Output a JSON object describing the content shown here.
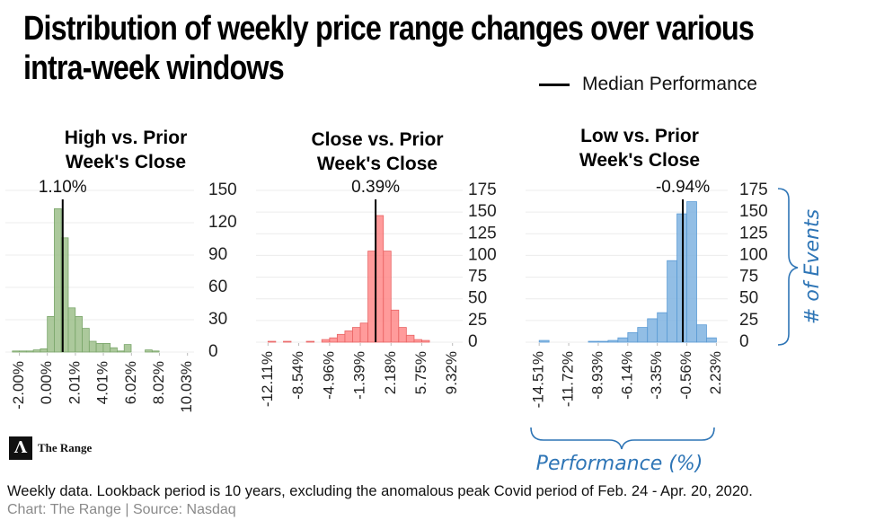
{
  "title": "Distribution of weekly price range changes over various intra-week windows",
  "legend": "Median Performance",
  "logo": "The Range",
  "footnote": "Weekly data. Lookback period is 10 years, excluding the anomalous peak Covid period of Feb. 24 - Apr. 20, 2020.",
  "source": "Chart: The Range | Source: Nasdaq",
  "chart_data": [
    {
      "type": "histogram",
      "title": "High vs. Prior Week's Close",
      "color": "#9dc08b",
      "grid": true,
      "bins": [
        -3,
        -2.5,
        -2,
        -1.5,
        -1,
        -0.5,
        0,
        0.5,
        1,
        1.5,
        2,
        2.5,
        3,
        3.5,
        4,
        4.5,
        5,
        5.5,
        6,
        6.5,
        7,
        7.5,
        8,
        8.5,
        9,
        9.5,
        10,
        10.5
      ],
      "values": [
        0,
        1,
        1,
        1,
        2,
        3,
        33,
        133,
        106,
        41,
        33,
        22,
        10,
        8,
        8,
        4,
        1,
        7,
        0,
        0,
        2,
        1,
        0,
        0,
        0,
        0,
        0
      ],
      "xlim": [
        -3,
        10.5
      ],
      "xticks": [
        {
          "value": -2,
          "label": "-2.00%"
        },
        {
          "value": 0,
          "label": "0.00%"
        },
        {
          "value": 2.01,
          "label": "2.01%"
        },
        {
          "value": 4.01,
          "label": "4.01%"
        },
        {
          "value": 6.02,
          "label": "6.02%"
        },
        {
          "value": 8.02,
          "label": "8.02%"
        },
        {
          "value": 10.03,
          "label": "10.03%"
        }
      ],
      "ylim": [
        0,
        150
      ],
      "yticks": [
        0,
        30,
        60,
        90,
        120,
        150
      ],
      "median": 1.1,
      "median_label": "1.10%"
    },
    {
      "type": "histogram",
      "title": "Close vs. Prior Week's Close",
      "color": "#ff8a8a",
      "grid": true,
      "bins": [
        -12.11,
        -11.22,
        -10.32,
        -9.43,
        -8.54,
        -7.65,
        -6.75,
        -5.86,
        -4.96,
        -4.07,
        -3.18,
        -2.29,
        -1.39,
        -0.5,
        0.39,
        1.29,
        2.18,
        3.07,
        3.96,
        4.86,
        5.75,
        6.64,
        7.54,
        8.43,
        9.32
      ],
      "values": [
        1,
        0,
        1,
        0,
        0,
        1,
        0,
        3,
        5,
        9,
        13,
        17,
        22,
        105,
        146,
        105,
        37,
        17,
        8,
        3,
        2,
        0,
        0,
        0
      ],
      "xlim": [
        -13.5,
        10.5
      ],
      "xticks": [
        {
          "value": -12.11,
          "label": "-12.11%"
        },
        {
          "value": -8.54,
          "label": "-8.54%"
        },
        {
          "value": -4.96,
          "label": "-4.96%"
        },
        {
          "value": -1.39,
          "label": "-1.39%"
        },
        {
          "value": 2.18,
          "label": "2.18%"
        },
        {
          "value": 5.75,
          "label": "5.75%"
        },
        {
          "value": 9.32,
          "label": "9.32%"
        }
      ],
      "ylim": [
        0,
        175
      ],
      "yticks": [
        0,
        25,
        50,
        75,
        100,
        125,
        150,
        175
      ],
      "median": 0.39,
      "median_label": "0.39%"
    },
    {
      "type": "histogram",
      "title": "Low vs. Prior Week's Close",
      "color": "#7fb3e0",
      "grid": true,
      "bins": [
        -14.51,
        -13.58,
        -12.65,
        -11.72,
        -10.79,
        -9.86,
        -8.93,
        -8.0,
        -7.07,
        -6.14,
        -5.21,
        -4.28,
        -3.35,
        -2.42,
        -1.49,
        -0.56,
        0.37,
        1.3,
        2.23
      ],
      "values": [
        2,
        0,
        0,
        0,
        0,
        1,
        1,
        2,
        5,
        11,
        17,
        27,
        34,
        94,
        148,
        162,
        20,
        5
      ],
      "xlim": [
        -15.8,
        3.3
      ],
      "xticks": [
        {
          "value": -14.51,
          "label": "-14.51%"
        },
        {
          "value": -11.72,
          "label": "-11.72%"
        },
        {
          "value": -8.93,
          "label": "-8.93%"
        },
        {
          "value": -6.14,
          "label": "-6.14%"
        },
        {
          "value": -3.35,
          "label": "-3.35%"
        },
        {
          "value": -0.56,
          "label": "-0.56%"
        },
        {
          "value": 2.23,
          "label": "2.23%"
        }
      ],
      "ylim": [
        0,
        175
      ],
      "yticks": [
        0,
        25,
        50,
        75,
        100,
        125,
        150,
        175
      ],
      "median": -0.94,
      "median_label": "-0.94%",
      "x_label": "Performance (%)",
      "y_label": "# of Events"
    }
  ]
}
